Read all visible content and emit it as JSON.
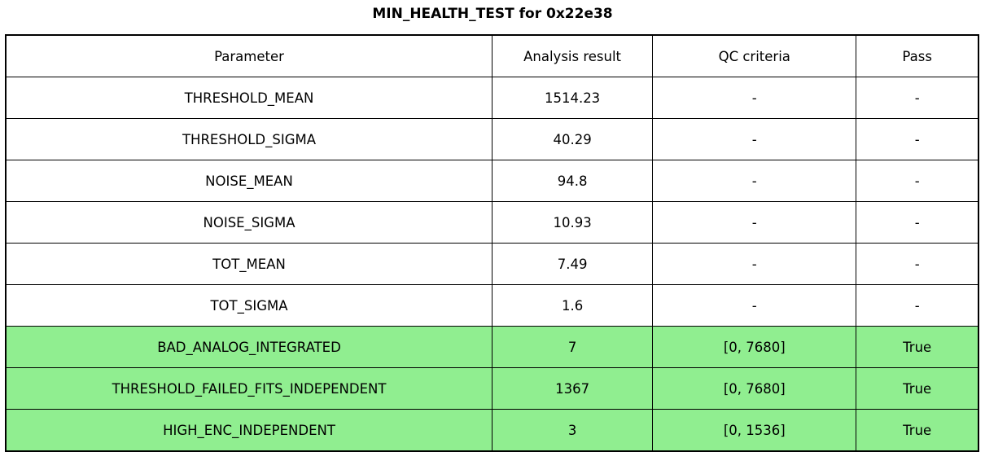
{
  "title": "MIN_HEALTH_TEST for 0x22e38",
  "colors": {
    "pass_row_background": "#90ee90",
    "border": "#000000",
    "background": "#ffffff",
    "text": "#000000"
  },
  "chart_data": {
    "type": "table",
    "title": "MIN_HEALTH_TEST for 0x22e38",
    "columns": [
      "Parameter",
      "Analysis result",
      "QC criteria",
      "Pass"
    ],
    "rows": [
      [
        "THRESHOLD_MEAN",
        "1514.23",
        "-",
        "-"
      ],
      [
        "THRESHOLD_SIGMA",
        "40.29",
        "-",
        "-"
      ],
      [
        "NOISE_MEAN",
        "94.8",
        "-",
        "-"
      ],
      [
        "NOISE_SIGMA",
        "10.93",
        "-",
        "-"
      ],
      [
        "TOT_MEAN",
        "7.49",
        "-",
        "-"
      ],
      [
        "TOT_SIGMA",
        "1.6",
        "-",
        "-"
      ],
      [
        "BAD_ANALOG_INTEGRATED",
        "7",
        "[0, 7680]",
        "True"
      ],
      [
        "THRESHOLD_FAILED_FITS_INDEPENDENT",
        "1367",
        "[0, 7680]",
        "True"
      ],
      [
        "HIGH_ENC_INDEPENDENT",
        "3",
        "[0, 1536]",
        "True"
      ]
    ],
    "highlighted_row_indices": [
      6,
      7,
      8
    ],
    "highlight_color": "#90ee90",
    "layout": {
      "grid": true,
      "header_row": true
    }
  }
}
